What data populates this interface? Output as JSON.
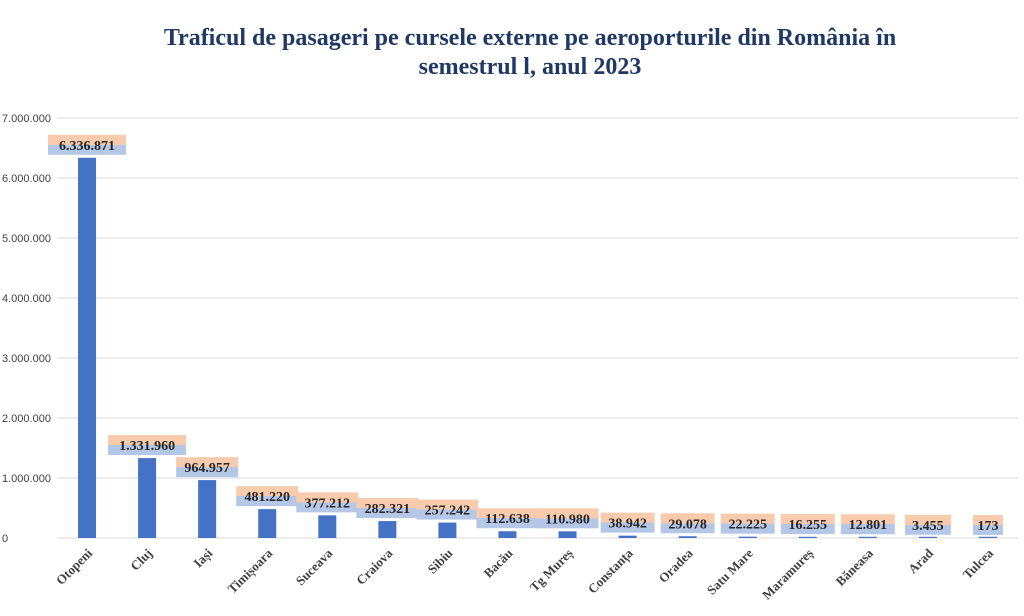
{
  "chart_data": {
    "type": "bar",
    "title": "Traficul de pasageri pe cursele externe pe aeroporturile din România în semestrul l, anul 2023",
    "xlabel": "",
    "ylabel": "",
    "ylim": [
      0,
      7000000
    ],
    "grid": true,
    "legend": "none",
    "categories": [
      "Otopeni",
      "Cluj",
      "Iași",
      "Timișoara",
      "Suceava",
      "Craiova",
      "Sibiu",
      "Bacău",
      "Tg Mureș",
      "Constanța",
      "Oradea",
      "Satu Mare",
      "Maramureș",
      "Băneasa",
      "Arad",
      "Tulcea"
    ],
    "values": [
      6336871,
      1331960,
      964957,
      481220,
      377212,
      282321,
      257242,
      112638,
      110980,
      38942,
      29078,
      22225,
      16255,
      12801,
      3455,
      173
    ],
    "data_labels": [
      "6.336.871",
      "1.331.960",
      "964.957",
      "481.220",
      "377.212",
      "282.321",
      "257.242",
      "112.638",
      "110.980",
      "38.942",
      "29.078",
      "22.225",
      "16.255",
      "12.801",
      "3.455",
      "173"
    ],
    "yticks": [
      0,
      1000000,
      2000000,
      3000000,
      4000000,
      5000000,
      6000000,
      7000000
    ],
    "ytick_labels": [
      "0",
      "1.000.000",
      "2.000.000",
      "3.000.000",
      "4.000.000",
      "5.000.000",
      "6.000.000",
      "7.000.000"
    ],
    "colors": {
      "bar": "#4472c4",
      "title": "#1f3864",
      "grid": "#d9d9d9",
      "label_fill_top": "#f8cbad",
      "label_fill_bottom": "#b4c7e7"
    }
  }
}
